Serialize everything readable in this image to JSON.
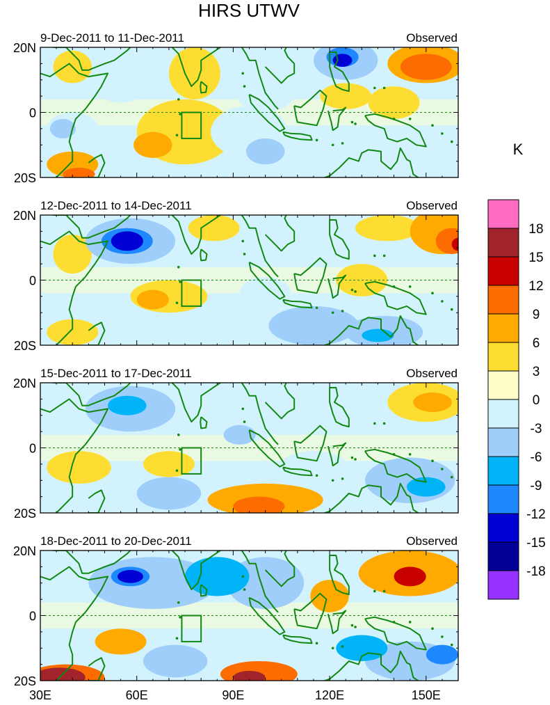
{
  "chart_data": {
    "type": "heatmap",
    "title": "HIRS UTWV",
    "units_label": "K",
    "x_axis": {
      "range": [
        30,
        160
      ],
      "ticks": [
        30,
        60,
        90,
        120,
        150
      ],
      "tick_labels": [
        "30E",
        "60E",
        "90E",
        "120E",
        "150E"
      ]
    },
    "y_axis": {
      "range": [
        -20,
        20
      ],
      "ticks": [
        20,
        0,
        -20
      ],
      "tick_labels": [
        "20N",
        "0",
        "20S"
      ]
    },
    "colorbar": {
      "levels": [
        18,
        15,
        12,
        9,
        6,
        3,
        0,
        -3,
        -6,
        -9,
        -12,
        -15,
        -18
      ],
      "level_labels": [
        "18",
        "15",
        "12",
        "9",
        "6",
        "3",
        "0",
        "-3",
        "-6",
        "-9",
        "-12",
        "-15",
        "-18"
      ],
      "colors": [
        "#ff6bc0",
        "#a1232b",
        "#c80000",
        "#fd6c00",
        "#ffaa00",
        "#fedd32",
        "#fefdca",
        "#d2f3fd",
        "#a0cefb",
        "#00b4f7",
        "#1e89ff",
        "#0000d4",
        "#000096",
        "#9632ff"
      ]
    },
    "box_region": {
      "lon": [
        74,
        80
      ],
      "lat": [
        -8,
        0
      ]
    },
    "panels": [
      {
        "left_title": "9-Dec-2011 to 11-Dec-2011",
        "right_title": "Observed",
        "blobs": [
          {
            "lon": 40,
            "lat": 14,
            "rx": 6,
            "ry": 5,
            "v": 3
          },
          {
            "lon": 55,
            "lat": 8,
            "rx": 8,
            "ry": 5,
            "v": -3
          },
          {
            "lon": 40,
            "lat": -5,
            "rx": 8,
            "ry": 5,
            "v": -3
          },
          {
            "lon": 37,
            "lat": -5,
            "rx": 4,
            "ry": 3,
            "v": -6
          },
          {
            "lon": 40,
            "lat": -16,
            "rx": 8,
            "ry": 4,
            "v": 6
          },
          {
            "lon": 42,
            "lat": -19,
            "rx": 5,
            "ry": 2,
            "v": 9
          },
          {
            "lon": 75,
            "lat": -6,
            "rx": 15,
            "ry": 10,
            "v": 3
          },
          {
            "lon": 65,
            "lat": -10,
            "rx": 6,
            "ry": 4,
            "v": 6
          },
          {
            "lon": 78,
            "lat": 12,
            "rx": 8,
            "ry": 8,
            "v": 3
          },
          {
            "lon": 100,
            "lat": 8,
            "rx": 10,
            "ry": 8,
            "v": -3
          },
          {
            "lon": 95,
            "lat": -6,
            "rx": 12,
            "ry": 8,
            "v": -3
          },
          {
            "lon": 100,
            "lat": -12,
            "rx": 6,
            "ry": 4,
            "v": -6
          },
          {
            "lon": 125,
            "lat": 16,
            "rx": 10,
            "ry": 6,
            "v": -6
          },
          {
            "lon": 124,
            "lat": 17,
            "rx": 5,
            "ry": 3,
            "v": -12
          },
          {
            "lon": 124,
            "lat": 16,
            "rx": 3,
            "ry": 2,
            "v": -15
          },
          {
            "lon": 125,
            "lat": 5,
            "rx": 8,
            "ry": 4,
            "v": 3
          },
          {
            "lon": 150,
            "lat": 15,
            "rx": 12,
            "ry": 6,
            "v": 6
          },
          {
            "lon": 150,
            "lat": 14,
            "rx": 8,
            "ry": 4,
            "v": 9
          },
          {
            "lon": 135,
            "lat": -12,
            "rx": 12,
            "ry": 6,
            "v": -3
          },
          {
            "lon": 140,
            "lat": 3,
            "rx": 8,
            "ry": 5,
            "v": 3
          }
        ]
      },
      {
        "left_title": "12-Dec-2011 to 14-Dec-2011",
        "right_title": "Observed",
        "blobs": [
          {
            "lon": 58,
            "lat": 12,
            "rx": 14,
            "ry": 7,
            "v": -6
          },
          {
            "lon": 57,
            "lat": 12,
            "rx": 8,
            "ry": 4,
            "v": -12
          },
          {
            "lon": 57,
            "lat": 12,
            "rx": 5,
            "ry": 3,
            "v": -15
          },
          {
            "lon": 40,
            "lat": 8,
            "rx": 6,
            "ry": 6,
            "v": 3
          },
          {
            "lon": 40,
            "lat": -16,
            "rx": 8,
            "ry": 4,
            "v": 3
          },
          {
            "lon": 70,
            "lat": -5,
            "rx": 12,
            "ry": 5,
            "v": 3
          },
          {
            "lon": 65,
            "lat": -6,
            "rx": 5,
            "ry": 3,
            "v": 6
          },
          {
            "lon": 84,
            "lat": 16,
            "rx": 8,
            "ry": 4,
            "v": 3
          },
          {
            "lon": 100,
            "lat": 12,
            "rx": 8,
            "ry": 5,
            "v": -3
          },
          {
            "lon": 115,
            "lat": -14,
            "rx": 14,
            "ry": 6,
            "v": -6
          },
          {
            "lon": 137,
            "lat": -16,
            "rx": 12,
            "ry": 5,
            "v": -6
          },
          {
            "lon": 135,
            "lat": -17,
            "rx": 5,
            "ry": 2,
            "v": -9
          },
          {
            "lon": 155,
            "lat": 15,
            "rx": 10,
            "ry": 7,
            "v": 6
          },
          {
            "lon": 158,
            "lat": 12,
            "rx": 5,
            "ry": 4,
            "v": 9
          },
          {
            "lon": 160,
            "lat": 11,
            "rx": 2,
            "ry": 2,
            "v": 12
          },
          {
            "lon": 138,
            "lat": 16,
            "rx": 10,
            "ry": 4,
            "v": 3
          },
          {
            "lon": 130,
            "lat": 0,
            "rx": 8,
            "ry": 5,
            "v": 3
          },
          {
            "lon": 100,
            "lat": -4,
            "rx": 8,
            "ry": 5,
            "v": -3
          }
        ]
      },
      {
        "left_title": "15-Dec-2011 to 17-Dec-2011",
        "right_title": "Observed",
        "blobs": [
          {
            "lon": 58,
            "lat": 12,
            "rx": 14,
            "ry": 7,
            "v": -6
          },
          {
            "lon": 57,
            "lat": 13,
            "rx": 6,
            "ry": 3,
            "v": -9
          },
          {
            "lon": 42,
            "lat": -6,
            "rx": 10,
            "ry": 5,
            "v": 3
          },
          {
            "lon": 70,
            "lat": -5,
            "rx": 8,
            "ry": 4,
            "v": 3
          },
          {
            "lon": 70,
            "lat": -14,
            "rx": 10,
            "ry": 5,
            "v": -6
          },
          {
            "lon": 100,
            "lat": -16,
            "rx": 18,
            "ry": 5,
            "v": 6
          },
          {
            "lon": 98,
            "lat": -18,
            "rx": 8,
            "ry": 3,
            "v": 9
          },
          {
            "lon": 95,
            "lat": 8,
            "rx": 10,
            "ry": 6,
            "v": -3
          },
          {
            "lon": 92,
            "lat": 4,
            "rx": 5,
            "ry": 3,
            "v": -6
          },
          {
            "lon": 120,
            "lat": 10,
            "rx": 8,
            "ry": 5,
            "v": -3
          },
          {
            "lon": 150,
            "lat": 14,
            "rx": 12,
            "ry": 6,
            "v": 3
          },
          {
            "lon": 152,
            "lat": 14,
            "rx": 6,
            "ry": 3,
            "v": 6
          },
          {
            "lon": 145,
            "lat": -10,
            "rx": 14,
            "ry": 7,
            "v": -6
          },
          {
            "lon": 150,
            "lat": -12,
            "rx": 6,
            "ry": 3,
            "v": -9
          },
          {
            "lon": 115,
            "lat": -5,
            "rx": 10,
            "ry": 4,
            "v": -3
          }
        ]
      },
      {
        "left_title": "18-Dec-2011 to 20-Dec-2011",
        "right_title": "Observed",
        "blobs": [
          {
            "lon": 65,
            "lat": 10,
            "rx": 20,
            "ry": 8,
            "v": -6
          },
          {
            "lon": 58,
            "lat": 12,
            "rx": 6,
            "ry": 3,
            "v": -12
          },
          {
            "lon": 58,
            "lat": 12,
            "rx": 4,
            "ry": 2,
            "v": -15
          },
          {
            "lon": 85,
            "lat": 12,
            "rx": 10,
            "ry": 6,
            "v": -9
          },
          {
            "lon": 100,
            "lat": 10,
            "rx": 12,
            "ry": 8,
            "v": -6
          },
          {
            "lon": 38,
            "lat": -19,
            "rx": 12,
            "ry": 4,
            "v": 9
          },
          {
            "lon": 36,
            "lat": -19,
            "rx": 8,
            "ry": 3,
            "v": 15
          },
          {
            "lon": 55,
            "lat": -8,
            "rx": 8,
            "ry": 4,
            "v": 6
          },
          {
            "lon": 72,
            "lat": -14,
            "rx": 10,
            "ry": 5,
            "v": -6
          },
          {
            "lon": 98,
            "lat": -18,
            "rx": 12,
            "ry": 4,
            "v": 9
          },
          {
            "lon": 95,
            "lat": -19,
            "rx": 5,
            "ry": 2,
            "v": 15
          },
          {
            "lon": 145,
            "lat": 13,
            "rx": 16,
            "ry": 7,
            "v": 6
          },
          {
            "lon": 145,
            "lat": 12,
            "rx": 5,
            "ry": 3,
            "v": 12
          },
          {
            "lon": 120,
            "lat": 6,
            "rx": 6,
            "ry": 5,
            "v": 6
          },
          {
            "lon": 145,
            "lat": -14,
            "rx": 14,
            "ry": 6,
            "v": -6
          },
          {
            "lon": 155,
            "lat": -12,
            "rx": 5,
            "ry": 3,
            "v": -12
          },
          {
            "lon": 130,
            "lat": -10,
            "rx": 8,
            "ry": 4,
            "v": -9
          }
        ]
      }
    ]
  }
}
